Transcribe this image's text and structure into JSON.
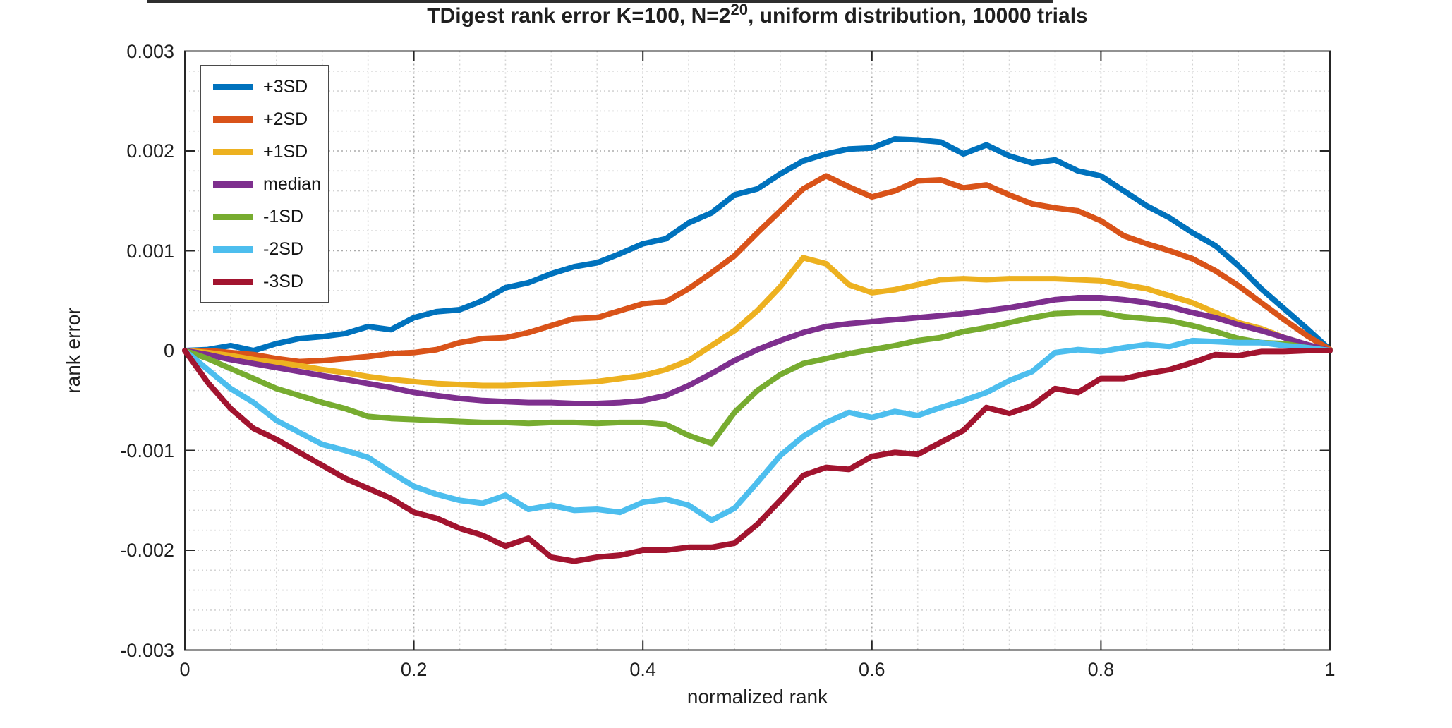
{
  "title": {
    "prefix": "TDigest rank error K=100, N=2",
    "superscript": "20",
    "suffix": ", uniform distribution, 10000 trials"
  },
  "axes": {
    "x": {
      "label": "normalized rank",
      "tick_values": [
        0,
        0.2,
        0.4,
        0.6,
        0.8,
        1
      ],
      "tick_labels": [
        "0",
        "0.2",
        "0.4",
        "0.6",
        "0.8",
        "1"
      ],
      "min": 0,
      "max": 1,
      "minor_step": 0.04
    },
    "y": {
      "label": "rank error",
      "tick_values": [
        0.003,
        0.002,
        0.001,
        0,
        -0.001,
        -0.002,
        -0.003
      ],
      "tick_labels": [
        "0.003",
        "0.002",
        "0.001",
        "0",
        "-0.001",
        "-0.002",
        "-0.003"
      ],
      "min": -0.003,
      "max": 0.003,
      "minor_step": 0.0002
    }
  },
  "legend": {
    "position": "top-left",
    "entries": [
      {
        "label": "+3SD",
        "color": "#0072BD"
      },
      {
        "label": "+2SD",
        "color": "#D95319"
      },
      {
        "label": "+1SD",
        "color": "#EDB120"
      },
      {
        "label": "median",
        "color": "#7E2F8E"
      },
      {
        "label": "-1SD",
        "color": "#77AC30"
      },
      {
        "label": "-2SD",
        "color": "#4DBEEE"
      },
      {
        "label": "-3SD",
        "color": "#A2142F"
      }
    ]
  },
  "style_colors": {
    "axis_box": "#262626",
    "tick": "#262626",
    "grid_major": "#ababab",
    "grid_minor": "#d4d4d4",
    "background": "#ffffff"
  },
  "chart_data": {
    "type": "line",
    "title": "TDigest rank error K=100, N=2^20, uniform distribution, 10000 trials",
    "xlabel": "normalized rank",
    "ylabel": "rank error",
    "xlim": [
      0,
      1
    ],
    "ylim": [
      -0.003,
      0.003
    ],
    "grid": true,
    "minor_grid": true,
    "legend_position": "top-left",
    "x": [
      0,
      0.02,
      0.04,
      0.06,
      0.08,
      0.1,
      0.12,
      0.14,
      0.16,
      0.18,
      0.2,
      0.22,
      0.24,
      0.26,
      0.28,
      0.3,
      0.32,
      0.34,
      0.36,
      0.38,
      0.4,
      0.42,
      0.44,
      0.46,
      0.48,
      0.5,
      0.52,
      0.54,
      0.56,
      0.58,
      0.6,
      0.62,
      0.64,
      0.66,
      0.68,
      0.7,
      0.72,
      0.74,
      0.76,
      0.78,
      0.8,
      0.82,
      0.84,
      0.86,
      0.88,
      0.9,
      0.92,
      0.94,
      0.96,
      0.98,
      1
    ],
    "series": [
      {
        "name": "+3SD",
        "color": "#0072BD",
        "values": [
          0,
          1e-05,
          5e-05,
          0,
          7e-05,
          0.00012,
          0.00014,
          0.00017,
          0.00024,
          0.00021,
          0.00033,
          0.00039,
          0.00041,
          0.0005,
          0.00063,
          0.00068,
          0.00077,
          0.00084,
          0.00088,
          0.00097,
          0.00107,
          0.00112,
          0.00128,
          0.00138,
          0.00156,
          0.00162,
          0.00177,
          0.0019,
          0.00197,
          0.00202,
          0.00203,
          0.00212,
          0.00211,
          0.00209,
          0.00197,
          0.00206,
          0.00195,
          0.00188,
          0.00191,
          0.0018,
          0.00175,
          0.0016,
          0.00145,
          0.00133,
          0.00118,
          0.00105,
          0.00085,
          0.00062,
          0.00042,
          0.00022,
          1e-05
        ]
      },
      {
        "name": "+2SD",
        "color": "#D95319",
        "values": [
          0,
          0,
          -2e-05,
          -4e-05,
          -8e-05,
          -0.00011,
          -0.0001,
          -8e-05,
          -6e-05,
          -3e-05,
          -2e-05,
          1e-05,
          8e-05,
          0.00012,
          0.00013,
          0.00018,
          0.00025,
          0.00032,
          0.00033,
          0.0004,
          0.00047,
          0.00049,
          0.00062,
          0.00078,
          0.00095,
          0.00118,
          0.0014,
          0.00162,
          0.00175,
          0.00164,
          0.00154,
          0.0016,
          0.0017,
          0.00171,
          0.00163,
          0.00166,
          0.00156,
          0.00147,
          0.00143,
          0.0014,
          0.0013,
          0.00115,
          0.00107,
          0.001,
          0.00092,
          0.0008,
          0.00065,
          0.00048,
          0.00031,
          0.00015,
          1e-05
        ]
      },
      {
        "name": "+1SD",
        "color": "#EDB120",
        "values": [
          0,
          -2e-05,
          -5e-05,
          -9e-05,
          -0.00012,
          -0.00015,
          -0.00019,
          -0.00022,
          -0.00026,
          -0.00029,
          -0.00031,
          -0.00033,
          -0.00034,
          -0.00035,
          -0.00035,
          -0.00034,
          -0.00033,
          -0.00032,
          -0.00031,
          -0.00028,
          -0.00025,
          -0.00019,
          -0.0001,
          5e-05,
          0.0002,
          0.0004,
          0.00064,
          0.00093,
          0.00087,
          0.00066,
          0.00058,
          0.00061,
          0.00066,
          0.00071,
          0.00072,
          0.00071,
          0.00072,
          0.00072,
          0.00072,
          0.00071,
          0.0007,
          0.00066,
          0.00062,
          0.00055,
          0.00048,
          0.00038,
          0.00028,
          0.00022,
          0.00013,
          6e-05,
          0
        ]
      },
      {
        "name": "median",
        "color": "#7E2F8E",
        "values": [
          0,
          -4e-05,
          -9e-05,
          -0.00013,
          -0.00017,
          -0.00021,
          -0.00025,
          -0.00029,
          -0.00033,
          -0.00037,
          -0.00042,
          -0.00045,
          -0.00048,
          -0.0005,
          -0.00051,
          -0.00052,
          -0.00052,
          -0.00053,
          -0.00053,
          -0.00052,
          -0.0005,
          -0.00045,
          -0.00035,
          -0.00023,
          -0.0001,
          1e-05,
          0.0001,
          0.00018,
          0.00024,
          0.00027,
          0.00029,
          0.00031,
          0.00033,
          0.00035,
          0.00037,
          0.0004,
          0.00043,
          0.00047,
          0.00051,
          0.00053,
          0.00053,
          0.00051,
          0.00048,
          0.00044,
          0.00038,
          0.00033,
          0.00026,
          0.0002,
          0.00013,
          6e-05,
          0
        ]
      },
      {
        "name": "-1SD",
        "color": "#77AC30",
        "values": [
          0,
          -8e-05,
          -0.00018,
          -0.00028,
          -0.00038,
          -0.00045,
          -0.00052,
          -0.00058,
          -0.00066,
          -0.00068,
          -0.00069,
          -0.0007,
          -0.00071,
          -0.00072,
          -0.00072,
          -0.00073,
          -0.00072,
          -0.00072,
          -0.00073,
          -0.00072,
          -0.00072,
          -0.00074,
          -0.00085,
          -0.00093,
          -0.00062,
          -0.0004,
          -0.00024,
          -0.00013,
          -8e-05,
          -3e-05,
          1e-05,
          5e-05,
          0.0001,
          0.00013,
          0.00019,
          0.00023,
          0.00028,
          0.00033,
          0.00037,
          0.00038,
          0.00038,
          0.00034,
          0.00032,
          0.0003,
          0.00025,
          0.00019,
          0.00012,
          8e-05,
          7e-05,
          3e-05,
          0
        ]
      },
      {
        "name": "-2SD",
        "color": "#4DBEEE",
        "values": [
          0,
          -0.00019,
          -0.00038,
          -0.00052,
          -0.0007,
          -0.00082,
          -0.00094,
          -0.001,
          -0.00107,
          -0.00122,
          -0.00136,
          -0.00144,
          -0.0015,
          -0.00153,
          -0.00145,
          -0.00159,
          -0.00155,
          -0.0016,
          -0.00159,
          -0.00162,
          -0.00152,
          -0.00149,
          -0.00155,
          -0.0017,
          -0.00158,
          -0.00132,
          -0.00105,
          -0.00086,
          -0.00072,
          -0.00062,
          -0.00067,
          -0.00061,
          -0.00065,
          -0.00057,
          -0.0005,
          -0.00042,
          -0.0003,
          -0.00021,
          -2e-05,
          1e-05,
          -1e-05,
          3e-05,
          6e-05,
          4e-05,
          0.0001,
          9e-05,
          8e-05,
          8e-05,
          5e-05,
          3e-05,
          0
        ]
      },
      {
        "name": "-3SD",
        "color": "#A2142F",
        "values": [
          0,
          -0.00032,
          -0.00058,
          -0.00078,
          -0.00089,
          -0.00102,
          -0.00115,
          -0.00128,
          -0.00138,
          -0.00148,
          -0.00162,
          -0.00168,
          -0.00178,
          -0.00185,
          -0.00196,
          -0.00188,
          -0.00207,
          -0.00211,
          -0.00207,
          -0.00205,
          -0.002,
          -0.002,
          -0.00197,
          -0.00197,
          -0.00193,
          -0.00174,
          -0.0015,
          -0.00125,
          -0.00117,
          -0.00119,
          -0.00106,
          -0.00102,
          -0.00104,
          -0.00092,
          -0.0008,
          -0.00057,
          -0.00063,
          -0.00055,
          -0.00038,
          -0.00042,
          -0.00028,
          -0.00028,
          -0.00023,
          -0.00019,
          -0.00012,
          -4e-05,
          -5e-05,
          -1e-05,
          -1e-05,
          0,
          0
        ]
      }
    ]
  }
}
